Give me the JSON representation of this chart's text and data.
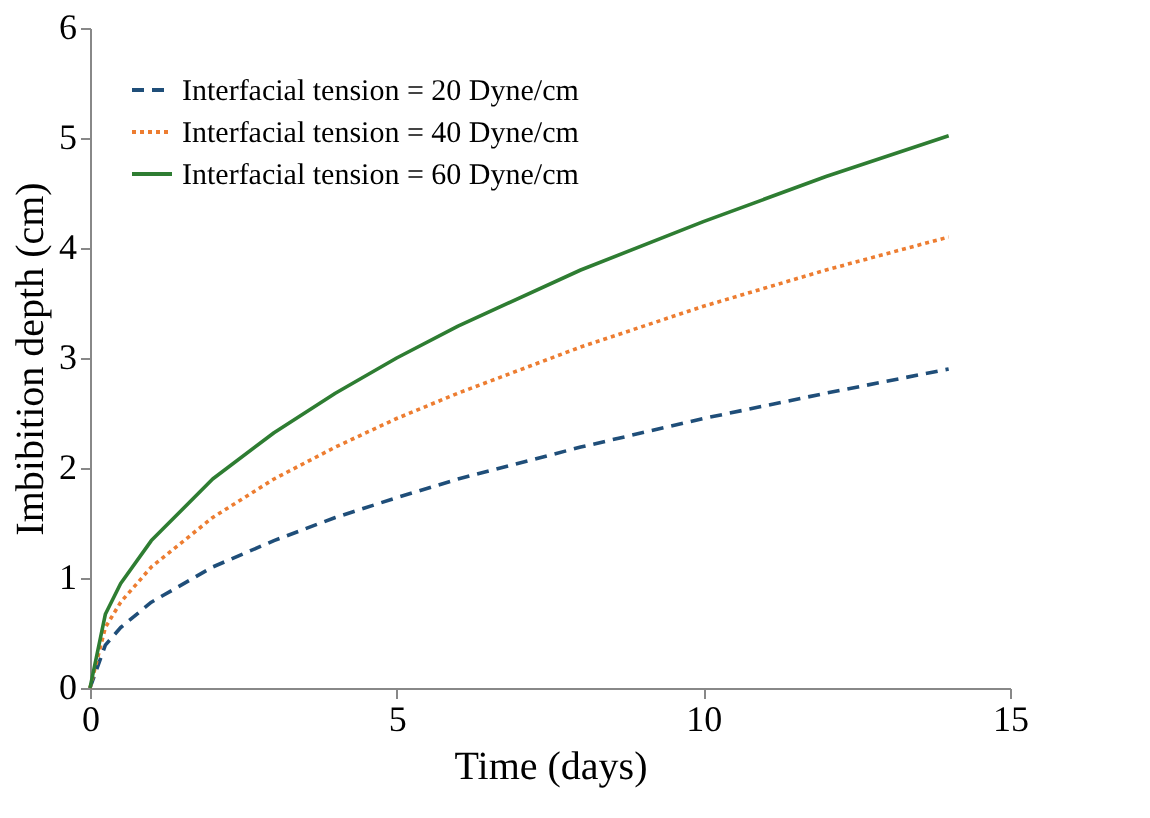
{
  "chart_data": {
    "type": "line",
    "xlabel": "Time (days)",
    "ylabel": "Imbibition depth (cm)",
    "x": [
      0,
      0.25,
      0.5,
      1,
      2,
      3,
      4,
      5,
      6,
      8,
      10,
      12,
      14
    ],
    "series": [
      {
        "name": "Interfacial tension = 20 Dyne/cm",
        "color": "#1f4e79",
        "line_style": "dashed",
        "values": [
          0,
          0.39,
          0.55,
          0.78,
          1.1,
          1.34,
          1.55,
          1.73,
          1.9,
          2.19,
          2.45,
          2.68,
          2.9
        ]
      },
      {
        "name": "Interfacial tension = 40 Dyne/cm",
        "color": "#ed7d31",
        "line_style": "dotted",
        "values": [
          0,
          0.55,
          0.78,
          1.1,
          1.55,
          1.9,
          2.19,
          2.45,
          2.68,
          3.1,
          3.47,
          3.8,
          4.1
        ]
      },
      {
        "name": "Interfacial tension = 60 Dyne/cm",
        "color": "#2e7d32",
        "line_style": "solid",
        "values": [
          0,
          0.67,
          0.95,
          1.34,
          1.9,
          2.32,
          2.68,
          3.0,
          3.29,
          3.8,
          4.24,
          4.65,
          5.02
        ]
      }
    ],
    "xlim": [
      0,
      15
    ],
    "xticks": [
      0,
      5,
      10,
      15
    ],
    "ylim": [
      0,
      6
    ],
    "yticks": [
      0,
      1,
      2,
      3,
      4,
      5,
      6
    ],
    "grid": false,
    "legend": "top left",
    "marker": "none"
  }
}
